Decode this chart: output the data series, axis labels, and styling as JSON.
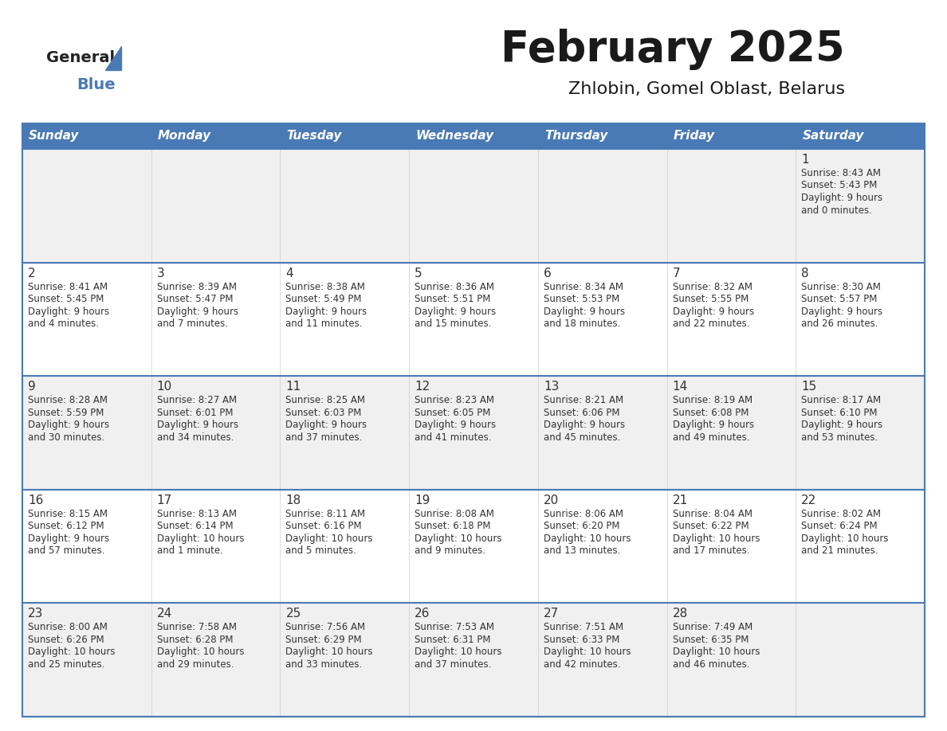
{
  "title": "February 2025",
  "subtitle": "Zhlobin, Gomel Oblast, Belarus",
  "header_color": "#4a7ab5",
  "header_text_color": "#ffffff",
  "header_days": [
    "Sunday",
    "Monday",
    "Tuesday",
    "Wednesday",
    "Thursday",
    "Friday",
    "Saturday"
  ],
  "bg_color": "#ffffff",
  "cell_bg_white": "#ffffff",
  "cell_bg_gray": "#f0f0f0",
  "border_color": "#4a7ab5",
  "thin_border_color": "#4a7ab5",
  "text_color": "#333333",
  "logo_general_color": "#222222",
  "logo_blue_color": "#4a7ab5",
  "logo_triangle_color": "#4a7ab5",
  "days": [
    {
      "day": 1,
      "col": 6,
      "row": 0,
      "sunrise": "8:43 AM",
      "sunset": "5:43 PM",
      "daylight": "9 hours\nand 0 minutes."
    },
    {
      "day": 2,
      "col": 0,
      "row": 1,
      "sunrise": "8:41 AM",
      "sunset": "5:45 PM",
      "daylight": "9 hours\nand 4 minutes."
    },
    {
      "day": 3,
      "col": 1,
      "row": 1,
      "sunrise": "8:39 AM",
      "sunset": "5:47 PM",
      "daylight": "9 hours\nand 7 minutes."
    },
    {
      "day": 4,
      "col": 2,
      "row": 1,
      "sunrise": "8:38 AM",
      "sunset": "5:49 PM",
      "daylight": "9 hours\nand 11 minutes."
    },
    {
      "day": 5,
      "col": 3,
      "row": 1,
      "sunrise": "8:36 AM",
      "sunset": "5:51 PM",
      "daylight": "9 hours\nand 15 minutes."
    },
    {
      "day": 6,
      "col": 4,
      "row": 1,
      "sunrise": "8:34 AM",
      "sunset": "5:53 PM",
      "daylight": "9 hours\nand 18 minutes."
    },
    {
      "day": 7,
      "col": 5,
      "row": 1,
      "sunrise": "8:32 AM",
      "sunset": "5:55 PM",
      "daylight": "9 hours\nand 22 minutes."
    },
    {
      "day": 8,
      "col": 6,
      "row": 1,
      "sunrise": "8:30 AM",
      "sunset": "5:57 PM",
      "daylight": "9 hours\nand 26 minutes."
    },
    {
      "day": 9,
      "col": 0,
      "row": 2,
      "sunrise": "8:28 AM",
      "sunset": "5:59 PM",
      "daylight": "9 hours\nand 30 minutes."
    },
    {
      "day": 10,
      "col": 1,
      "row": 2,
      "sunrise": "8:27 AM",
      "sunset": "6:01 PM",
      "daylight": "9 hours\nand 34 minutes."
    },
    {
      "day": 11,
      "col": 2,
      "row": 2,
      "sunrise": "8:25 AM",
      "sunset": "6:03 PM",
      "daylight": "9 hours\nand 37 minutes."
    },
    {
      "day": 12,
      "col": 3,
      "row": 2,
      "sunrise": "8:23 AM",
      "sunset": "6:05 PM",
      "daylight": "9 hours\nand 41 minutes."
    },
    {
      "day": 13,
      "col": 4,
      "row": 2,
      "sunrise": "8:21 AM",
      "sunset": "6:06 PM",
      "daylight": "9 hours\nand 45 minutes."
    },
    {
      "day": 14,
      "col": 5,
      "row": 2,
      "sunrise": "8:19 AM",
      "sunset": "6:08 PM",
      "daylight": "9 hours\nand 49 minutes."
    },
    {
      "day": 15,
      "col": 6,
      "row": 2,
      "sunrise": "8:17 AM",
      "sunset": "6:10 PM",
      "daylight": "9 hours\nand 53 minutes."
    },
    {
      "day": 16,
      "col": 0,
      "row": 3,
      "sunrise": "8:15 AM",
      "sunset": "6:12 PM",
      "daylight": "9 hours\nand 57 minutes."
    },
    {
      "day": 17,
      "col": 1,
      "row": 3,
      "sunrise": "8:13 AM",
      "sunset": "6:14 PM",
      "daylight": "10 hours\nand 1 minute."
    },
    {
      "day": 18,
      "col": 2,
      "row": 3,
      "sunrise": "8:11 AM",
      "sunset": "6:16 PM",
      "daylight": "10 hours\nand 5 minutes."
    },
    {
      "day": 19,
      "col": 3,
      "row": 3,
      "sunrise": "8:08 AM",
      "sunset": "6:18 PM",
      "daylight": "10 hours\nand 9 minutes."
    },
    {
      "day": 20,
      "col": 4,
      "row": 3,
      "sunrise": "8:06 AM",
      "sunset": "6:20 PM",
      "daylight": "10 hours\nand 13 minutes."
    },
    {
      "day": 21,
      "col": 5,
      "row": 3,
      "sunrise": "8:04 AM",
      "sunset": "6:22 PM",
      "daylight": "10 hours\nand 17 minutes."
    },
    {
      "day": 22,
      "col": 6,
      "row": 3,
      "sunrise": "8:02 AM",
      "sunset": "6:24 PM",
      "daylight": "10 hours\nand 21 minutes."
    },
    {
      "day": 23,
      "col": 0,
      "row": 4,
      "sunrise": "8:00 AM",
      "sunset": "6:26 PM",
      "daylight": "10 hours\nand 25 minutes."
    },
    {
      "day": 24,
      "col": 1,
      "row": 4,
      "sunrise": "7:58 AM",
      "sunset": "6:28 PM",
      "daylight": "10 hours\nand 29 minutes."
    },
    {
      "day": 25,
      "col": 2,
      "row": 4,
      "sunrise": "7:56 AM",
      "sunset": "6:29 PM",
      "daylight": "10 hours\nand 33 minutes."
    },
    {
      "day": 26,
      "col": 3,
      "row": 4,
      "sunrise": "7:53 AM",
      "sunset": "6:31 PM",
      "daylight": "10 hours\nand 37 minutes."
    },
    {
      "day": 27,
      "col": 4,
      "row": 4,
      "sunrise": "7:51 AM",
      "sunset": "6:33 PM",
      "daylight": "10 hours\nand 42 minutes."
    },
    {
      "day": 28,
      "col": 5,
      "row": 4,
      "sunrise": "7:49 AM",
      "sunset": "6:35 PM",
      "daylight": "10 hours\nand 46 minutes."
    }
  ]
}
